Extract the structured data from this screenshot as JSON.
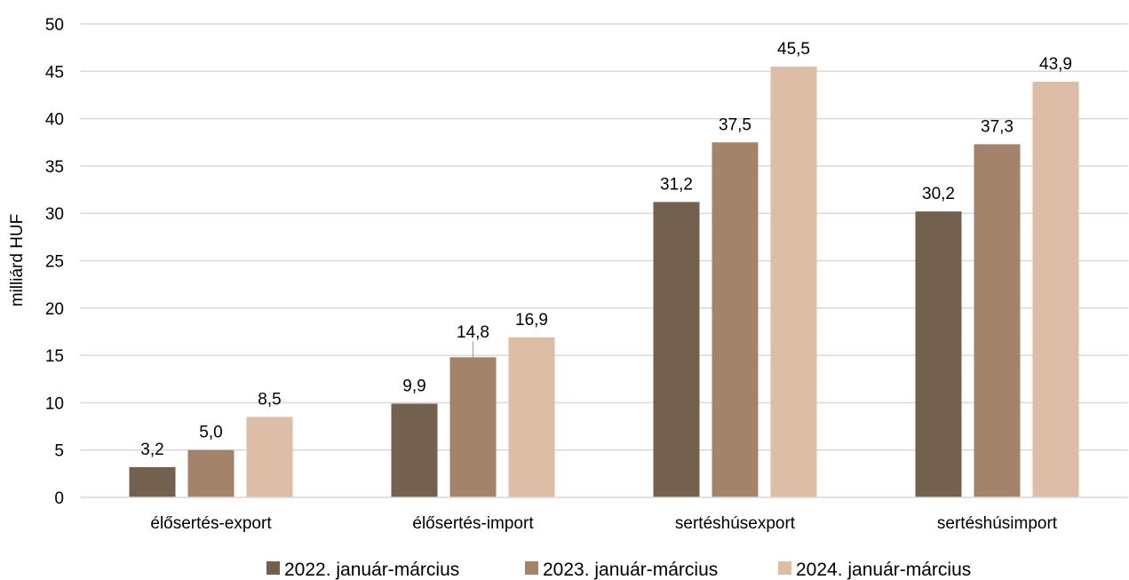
{
  "chart_data": {
    "type": "bar",
    "ylabel": "milliárd HUF",
    "xlabel": "",
    "ylim": [
      0,
      50
    ],
    "yticks": [
      0,
      5,
      10,
      15,
      20,
      25,
      30,
      35,
      40,
      45,
      50
    ],
    "grid": true,
    "legend_position": "bottom",
    "categories": [
      "élősertés-export",
      "élősertés-import",
      "sertéshúsexport",
      "sertéshúsimport"
    ],
    "series": [
      {
        "name": "2022. január-március",
        "color": "#74604e",
        "values": [
          3.2,
          9.9,
          31.2,
          30.2
        ],
        "labels": [
          "3,2",
          "9,9",
          "31,2",
          "30,2"
        ]
      },
      {
        "name": "2023. január-március",
        "color": "#a3846a",
        "values": [
          5.0,
          14.8,
          37.5,
          37.3
        ],
        "labels": [
          "5,0",
          "14,8",
          "37,5",
          "37,3"
        ]
      },
      {
        "name": "2024. január-március",
        "color": "#ddbda5",
        "values": [
          8.5,
          16.9,
          45.5,
          43.9
        ],
        "labels": [
          "8,5",
          "16,9",
          "45,5",
          "43,9"
        ]
      }
    ]
  }
}
